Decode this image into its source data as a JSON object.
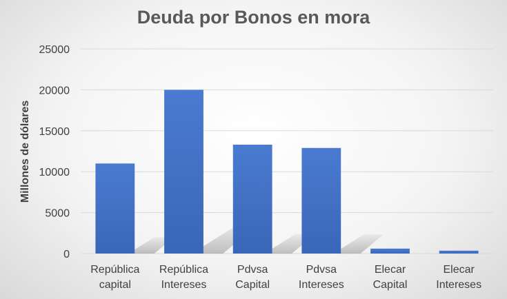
{
  "chart_data": {
    "type": "bar",
    "title": "Deuda por Bonos en mora",
    "xlabel": "",
    "ylabel": "Millones de dólares",
    "categories": [
      [
        "República",
        "capital"
      ],
      [
        "República",
        "Intereses"
      ],
      [
        "Pdvsa",
        "Capital"
      ],
      [
        "Pdvsa",
        "Intereses"
      ],
      [
        "Elecar",
        "Capital"
      ],
      [
        "Elecar",
        "Intereses"
      ]
    ],
    "values": [
      11000,
      20000,
      13300,
      12900,
      600,
      350
    ],
    "ylim": [
      0,
      25000
    ],
    "yticks": [
      "0",
      "5000",
      "10000",
      "15000",
      "20000",
      "25000"
    ],
    "grid": true,
    "legend": "none",
    "colors": {
      "bar": "#4472C4",
      "bar_dark": "#2F5597",
      "grid": "#d9d9d9",
      "text": "#404040"
    }
  }
}
